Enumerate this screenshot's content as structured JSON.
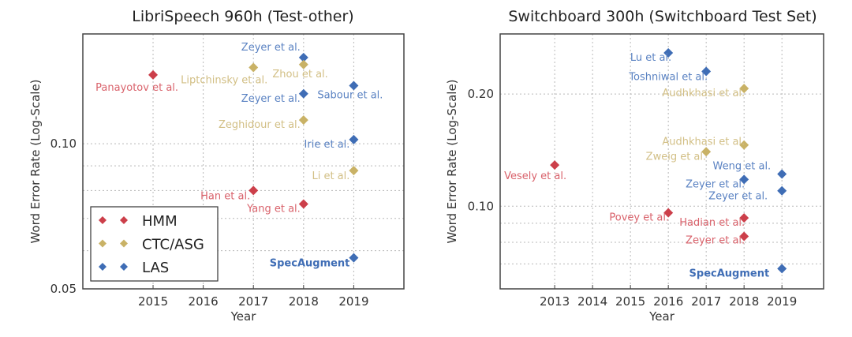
{
  "colors": {
    "HMM": "#cc3f4a",
    "CTC/ASG": "#c9b266",
    "LAS": "#3f6db5"
  },
  "label_colors": {
    "HMM": "#d9626b",
    "CTC/ASG": "#d2bf85",
    "LAS": "#5a82c2"
  },
  "chart_data": [
    {
      "type": "scatter",
      "title": "LibriSpeech 960h (Test-other)",
      "xlabel": "Year",
      "ylabel": "Word Error Rate (Log-Scale)",
      "yscale": "log",
      "xlim": [
        2013.6,
        2020
      ],
      "ylim": [
        0.05,
        0.169
      ],
      "xticks": [
        "2015",
        "2016",
        "2017",
        "2018",
        "2019"
      ],
      "yticks": [
        "0.10",
        "0.05"
      ],
      "grid": true,
      "legend": {
        "placement": "lower-left",
        "entries": [
          "HMM",
          "CTC/ASG",
          "LAS"
        ]
      },
      "points": [
        {
          "label": "Zeyer et al.",
          "x": 2018,
          "y": 0.151,
          "series": "LAS"
        },
        {
          "label": "Liptchinsky et al.",
          "x": 2017,
          "y": 0.144,
          "series": "CTC/ASG"
        },
        {
          "label": "Zhou et al.",
          "x": 2018,
          "y": 0.146,
          "series": "CTC/ASG"
        },
        {
          "label": "Panayotov et al.",
          "x": 2015,
          "y": 0.139,
          "series": "HMM"
        },
        {
          "label": "Zeyer et al.",
          "x": 2018,
          "y": 0.127,
          "series": "LAS"
        },
        {
          "label": "Sabour et al.",
          "x": 2019,
          "y": 0.132,
          "series": "LAS"
        },
        {
          "label": "Zeghidour et al.",
          "x": 2018,
          "y": 0.112,
          "series": "CTC/ASG"
        },
        {
          "label": "Irie et al.",
          "x": 2019,
          "y": 0.102,
          "series": "LAS"
        },
        {
          "label": "Li et al.",
          "x": 2019,
          "y": 0.088,
          "series": "CTC/ASG"
        },
        {
          "label": "Han et al.",
          "x": 2017,
          "y": 0.08,
          "series": "HMM"
        },
        {
          "label": "Yang et al.",
          "x": 2018,
          "y": 0.075,
          "series": "HMM"
        },
        {
          "label": "SpecAugment",
          "x": 2019,
          "y": 0.058,
          "series": "LAS",
          "bold": true
        }
      ]
    },
    {
      "type": "scatter",
      "title": "Switchboard 300h (Switchboard Test Set)",
      "xlabel": "Year",
      "ylabel": "Word Error Rate (Log-Scale)",
      "yscale": "log",
      "xlim": [
        2011.56,
        2020.1
      ],
      "ylim": [
        0.06,
        0.29
      ],
      "xticks": [
        "2013",
        "2014",
        "2015",
        "2016",
        "2017",
        "2018",
        "2019"
      ],
      "yticks": [
        "0.20",
        "0.10"
      ],
      "grid": true,
      "points": [
        {
          "label": "Lu et al.",
          "x": 2016,
          "y": 0.258,
          "series": "LAS"
        },
        {
          "label": "Toshniwal et al.",
          "x": 2017,
          "y": 0.23,
          "series": "LAS"
        },
        {
          "label": "Audhkhasi et al.",
          "x": 2018,
          "y": 0.207,
          "series": "CTC/ASG"
        },
        {
          "label": "Audhkhasi et al.",
          "x": 2018,
          "y": 0.146,
          "series": "CTC/ASG"
        },
        {
          "label": "Zweig et al.",
          "x": 2017,
          "y": 0.14,
          "series": "CTC/ASG"
        },
        {
          "label": "Vesely et al.",
          "x": 2013,
          "y": 0.129,
          "series": "HMM"
        },
        {
          "label": "Weng et al.",
          "x": 2019,
          "y": 0.122,
          "series": "LAS"
        },
        {
          "label": "Zeyer et al.",
          "x": 2018,
          "y": 0.118,
          "series": "LAS"
        },
        {
          "label": "Zeyer et al.",
          "x": 2019,
          "y": 0.11,
          "series": "LAS"
        },
        {
          "label": "Povey et al.",
          "x": 2016,
          "y": 0.096,
          "series": "HMM"
        },
        {
          "label": "Hadian et al.",
          "x": 2018,
          "y": 0.093,
          "series": "HMM"
        },
        {
          "label": "Zeyer et al.",
          "x": 2018,
          "y": 0.083,
          "series": "HMM"
        },
        {
          "label": "SpecAugment",
          "x": 2019,
          "y": 0.068,
          "series": "LAS",
          "bold": true
        }
      ]
    }
  ]
}
